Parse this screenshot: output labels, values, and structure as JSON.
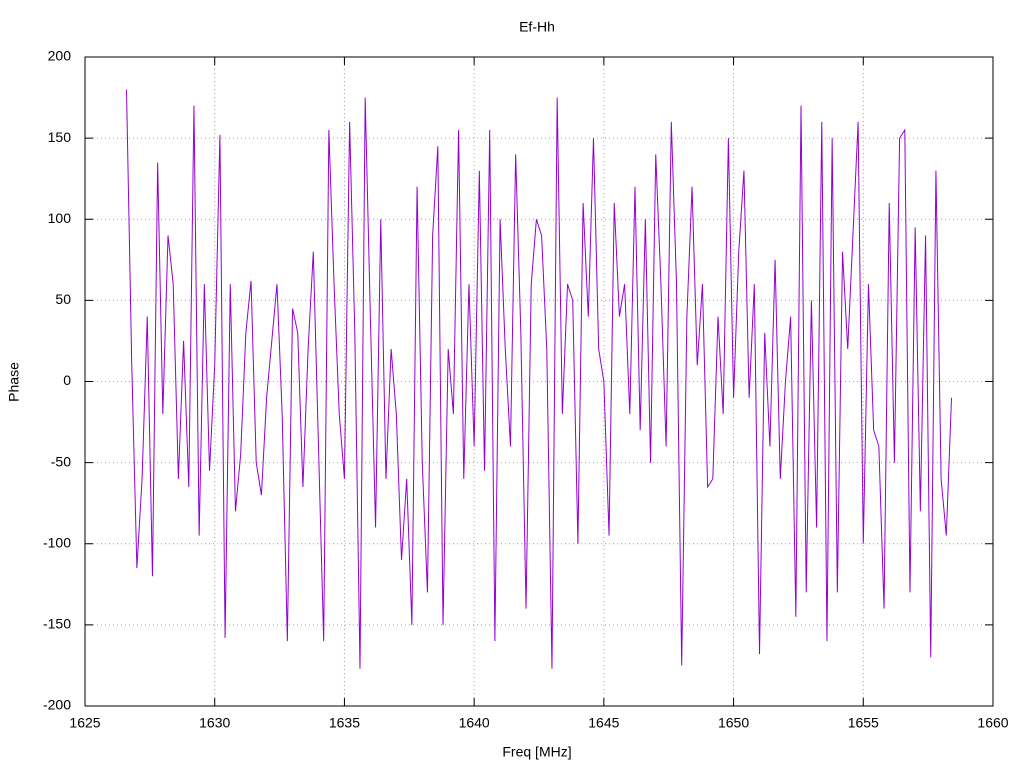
{
  "chart_data": {
    "type": "line",
    "title": "Ef-Hh",
    "xlabel": "Freq [MHz]",
    "ylabel": "Phase",
    "xlim": [
      1625,
      1660
    ],
    "xticks": [
      1625,
      1630,
      1635,
      1640,
      1645,
      1650,
      1655,
      1660
    ],
    "ylim": [
      -200,
      200
    ],
    "yticks": [
      -200,
      -150,
      -100,
      -50,
      0,
      50,
      100,
      150,
      200
    ],
    "grid": true,
    "x": [
      1626.6,
      1626.8,
      1627,
      1627.2,
      1627.4,
      1627.6,
      1627.8,
      1628,
      1628.2,
      1628.4,
      1628.6,
      1628.8,
      1629,
      1629.2,
      1629.4,
      1629.6,
      1629.8,
      1630,
      1630.2,
      1630.4,
      1630.6,
      1630.8,
      1631,
      1631.2,
      1631.4,
      1631.6,
      1631.8,
      1632,
      1632.2,
      1632.4,
      1632.6,
      1632.8,
      1633,
      1633.2,
      1633.4,
      1633.6,
      1633.8,
      1634,
      1634.2,
      1634.4,
      1634.6,
      1634.8,
      1635,
      1635.2,
      1635.4,
      1635.6,
      1635.8,
      1636,
      1636.2,
      1636.4,
      1636.6,
      1636.8,
      1637,
      1637.2,
      1637.4,
      1637.6,
      1637.8,
      1638,
      1638.2,
      1638.4,
      1638.6,
      1638.8,
      1639,
      1639.2,
      1639.4,
      1639.6,
      1639.8,
      1640,
      1640.2,
      1640.4,
      1640.6,
      1640.8,
      1641,
      1641.2,
      1641.4,
      1641.6,
      1641.8,
      1642,
      1642.2,
      1642.4,
      1642.6,
      1642.8,
      1643,
      1643.2,
      1643.4,
      1643.6,
      1643.8,
      1644,
      1644.2,
      1644.4,
      1644.6,
      1644.8,
      1645,
      1645.2,
      1645.4,
      1645.6,
      1645.8,
      1646,
      1646.2,
      1646.4,
      1646.6,
      1646.8,
      1647,
      1647.2,
      1647.4,
      1647.6,
      1647.8,
      1648,
      1648.2,
      1648.4,
      1648.6,
      1648.8,
      1649,
      1649.2,
      1649.4,
      1649.6,
      1649.8,
      1650,
      1650.2,
      1650.4,
      1650.6,
      1650.8,
      1651,
      1651.2,
      1651.4,
      1651.6,
      1651.8,
      1652,
      1652.2,
      1652.4,
      1652.6,
      1652.8,
      1653,
      1653.2,
      1653.4,
      1653.6,
      1653.8,
      1654,
      1654.2,
      1654.4,
      1654.6,
      1654.8,
      1655,
      1655.2,
      1655.4,
      1655.6,
      1655.8,
      1656,
      1656.2,
      1656.4,
      1656.6,
      1656.8,
      1657,
      1657.2,
      1657.4,
      1657.6,
      1657.8,
      1658,
      1658.2,
      1658.4
    ],
    "series": [
      {
        "name": "Ef-Hh",
        "color": "#9400d3",
        "values": [
          180,
          12,
          -115,
          -60,
          40,
          -120,
          135,
          -20,
          90,
          60,
          -60,
          25,
          -65,
          170,
          -95,
          60,
          -55,
          10,
          152,
          -158,
          60,
          -80,
          -45,
          30,
          62,
          -50,
          -70,
          -10,
          25,
          60,
          -20,
          -160,
          45,
          30,
          -65,
          20,
          80,
          -40,
          -160,
          155,
          60,
          -20,
          -60,
          160,
          30,
          -177,
          175,
          40,
          -90,
          100,
          -60,
          20,
          -20,
          -110,
          -60,
          -150,
          120,
          -50,
          -130,
          90,
          145,
          -150,
          20,
          -20,
          155,
          -60,
          60,
          -40,
          130,
          -55,
          155,
          -160,
          100,
          20,
          -40,
          140,
          30,
          -140,
          60,
          100,
          90,
          20,
          -177,
          175,
          -20,
          60,
          50,
          -100,
          110,
          40,
          150,
          20,
          0,
          -95,
          110,
          40,
          60,
          -20,
          120,
          -30,
          100,
          -50,
          140,
          60,
          -40,
          160,
          60,
          -175,
          40,
          120,
          10,
          60,
          -65,
          -60,
          40,
          -20,
          150,
          -10,
          80,
          130,
          -10,
          60,
          -168,
          30,
          -40,
          75,
          -60,
          0,
          40,
          -145,
          170,
          -130,
          50,
          -90,
          160,
          -160,
          150,
          -130,
          80,
          20,
          90,
          160,
          -100,
          60,
          -30,
          -40,
          -140,
          110,
          -50,
          150,
          155,
          -130,
          95,
          -80,
          90,
          -170,
          130,
          -60,
          -95,
          -10
        ]
      }
    ]
  }
}
